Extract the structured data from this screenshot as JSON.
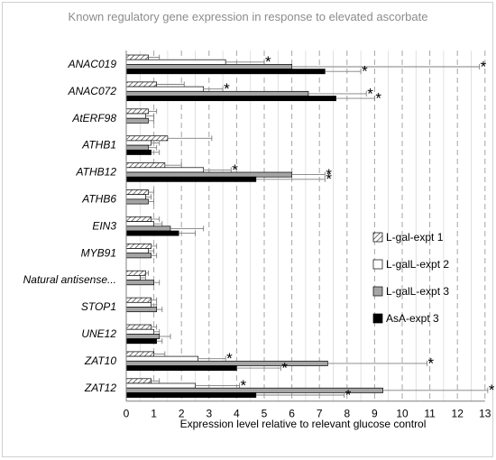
{
  "chart_data": {
    "type": "bar",
    "orientation": "horizontal",
    "title": "Known regulatory gene expression in response to elevated ascorbate",
    "xlabel": "Expression level relative to relevant glucose control",
    "ylabel": "",
    "xlim": [
      0,
      13
    ],
    "xticks": [
      "0",
      "1",
      "2",
      "3",
      "4",
      "5",
      "6",
      "7",
      "8",
      "9",
      "10",
      "11",
      "12",
      "13"
    ],
    "grid": "vertical dashed at every major tick, light vertical at every 0.5",
    "legend_position": "right",
    "categories": [
      "ANAC019",
      "ANAC072",
      "AtERF98",
      "ATHB1",
      "ATHB12",
      "ATHB6",
      "EIN3",
      "MYB91",
      "Natural antisense...",
      "STOP1",
      "UNE12",
      "ZAT10",
      "ZAT12"
    ],
    "series": [
      {
        "name": "L-gal-expt 1",
        "pattern": "hatch",
        "values": [
          0.8,
          1.1,
          0.8,
          1.5,
          1.4,
          0.8,
          0.9,
          0.9,
          0.7,
          0.9,
          0.9,
          1.0,
          0.9
        ],
        "errors": [
          0.4,
          1.0,
          0.3,
          1.6,
          0.6,
          0.2,
          0.3,
          0.2,
          0.1,
          0.2,
          0.2,
          0.4,
          0.3
        ],
        "significant": [
          false,
          false,
          false,
          false,
          false,
          false,
          false,
          false,
          false,
          false,
          false,
          false,
          false
        ]
      },
      {
        "name": "L-galL-expt 2",
        "pattern": "white",
        "values": [
          3.6,
          2.8,
          0.7,
          0.9,
          2.8,
          0.7,
          1.0,
          0.8,
          0.5,
          0.9,
          1.0,
          2.6,
          2.5
        ],
        "errors": [
          1.4,
          0.7,
          0.3,
          0.3,
          1.0,
          0.2,
          0.3,
          0.2,
          0.2,
          0.2,
          0.2,
          1.0,
          1.6
        ],
        "significant": [
          true,
          true,
          false,
          false,
          true,
          false,
          false,
          false,
          false,
          false,
          false,
          true,
          true
        ]
      },
      {
        "name": "L-galL-expt 3",
        "pattern": "gray",
        "values": [
          6.0,
          6.6,
          0.8,
          0.8,
          6.0,
          0.8,
          1.6,
          0.9,
          1.0,
          1.1,
          1.2,
          7.3,
          9.3
        ],
        "errors": [
          6.8,
          2.1,
          0.2,
          0.3,
          1.2,
          0.2,
          1.2,
          0.2,
          0.2,
          0.2,
          0.4,
          3.6,
          3.8
        ],
        "significant": [
          true,
          true,
          false,
          false,
          true,
          false,
          false,
          false,
          false,
          false,
          false,
          true,
          true
        ]
      },
      {
        "name": "AsA-expt 3",
        "pattern": "black",
        "values": [
          7.2,
          7.6,
          0,
          0.9,
          4.7,
          0,
          1.9,
          0,
          0,
          0,
          1.1,
          4.0,
          4.7
        ],
        "errors": [
          1.3,
          1.4,
          0,
          0.3,
          2.5,
          0,
          0.6,
          0,
          0,
          0,
          0.2,
          1.6,
          3.2
        ],
        "significant": [
          true,
          true,
          false,
          false,
          true,
          false,
          false,
          false,
          false,
          false,
          false,
          true,
          true
        ]
      }
    ],
    "significance_marker": "*"
  }
}
